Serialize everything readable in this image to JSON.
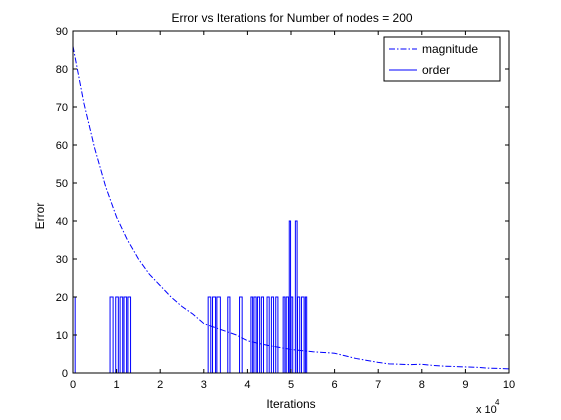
{
  "chart_data": {
    "type": "line",
    "title": "Error vs Iterations for Number of nodes = 200",
    "xlabel": "Iterations",
    "ylabel": "Error",
    "x_multiplier_label": "x 10",
    "x_multiplier_exponent": "4",
    "xlim": [
      0,
      10
    ],
    "ylim": [
      0,
      90
    ],
    "x_ticks": [
      0,
      1,
      2,
      3,
      4,
      5,
      6,
      7,
      8,
      9,
      10
    ],
    "y_ticks": [
      0,
      10,
      20,
      30,
      40,
      50,
      60,
      70,
      80,
      90
    ],
    "grid": false,
    "legend_position": "top-right",
    "series": [
      {
        "name": "magnitude",
        "style": "dash-dot",
        "color": "#0000ff",
        "x": [
          0,
          0.25,
          0.5,
          0.75,
          1.0,
          1.25,
          1.5,
          1.75,
          2.0,
          2.25,
          2.5,
          2.75,
          3.0,
          3.25,
          3.5,
          3.75,
          4.0,
          4.25,
          4.5,
          4.75,
          5.0,
          5.25,
          5.5,
          5.75,
          6.0,
          6.25,
          6.5,
          6.75,
          7.0,
          7.25,
          7.5,
          7.75,
          8.0,
          8.25,
          8.5,
          8.75,
          9.0,
          9.25,
          9.5,
          9.75,
          10.0
        ],
        "y": [
          86,
          71,
          59,
          49,
          41,
          35,
          30,
          26,
          23,
          20,
          17.5,
          15.5,
          13,
          12,
          11,
          10,
          8.5,
          7.8,
          7.2,
          6.7,
          6.2,
          5.9,
          5.6,
          5.4,
          5.2,
          4.5,
          3.8,
          3.3,
          2.8,
          2.4,
          2.3,
          2.2,
          2.3,
          2.0,
          1.8,
          1.7,
          1.6,
          1.5,
          1.3,
          1.2,
          1.1
        ]
      },
      {
        "name": "order",
        "style": "solid",
        "color": "#0000ff",
        "segments": [
          [
            0.0,
            0.05,
            20
          ],
          [
            0.85,
            0.92,
            20
          ],
          [
            0.98,
            1.04,
            20
          ],
          [
            1.08,
            1.14,
            20
          ],
          [
            1.17,
            1.23,
            20
          ],
          [
            1.26,
            1.32,
            20
          ],
          [
            3.1,
            3.16,
            20
          ],
          [
            3.2,
            3.27,
            20
          ],
          [
            3.3,
            3.38,
            20
          ],
          [
            3.55,
            3.6,
            20
          ],
          [
            3.82,
            3.88,
            20
          ],
          [
            4.08,
            4.12,
            20
          ],
          [
            4.15,
            4.2,
            20
          ],
          [
            4.23,
            4.28,
            20
          ],
          [
            4.32,
            4.37,
            20
          ],
          [
            4.45,
            4.5,
            20
          ],
          [
            4.55,
            4.6,
            20
          ],
          [
            4.65,
            4.7,
            20
          ],
          [
            4.82,
            4.86,
            20
          ],
          [
            4.89,
            4.94,
            20
          ],
          [
            4.96,
            4.99,
            40
          ],
          [
            5.0,
            5.04,
            20
          ],
          [
            5.1,
            5.14,
            40
          ],
          [
            5.15,
            5.2,
            20
          ],
          [
            5.24,
            5.3,
            20
          ],
          [
            5.33,
            5.36,
            20
          ]
        ]
      }
    ]
  }
}
